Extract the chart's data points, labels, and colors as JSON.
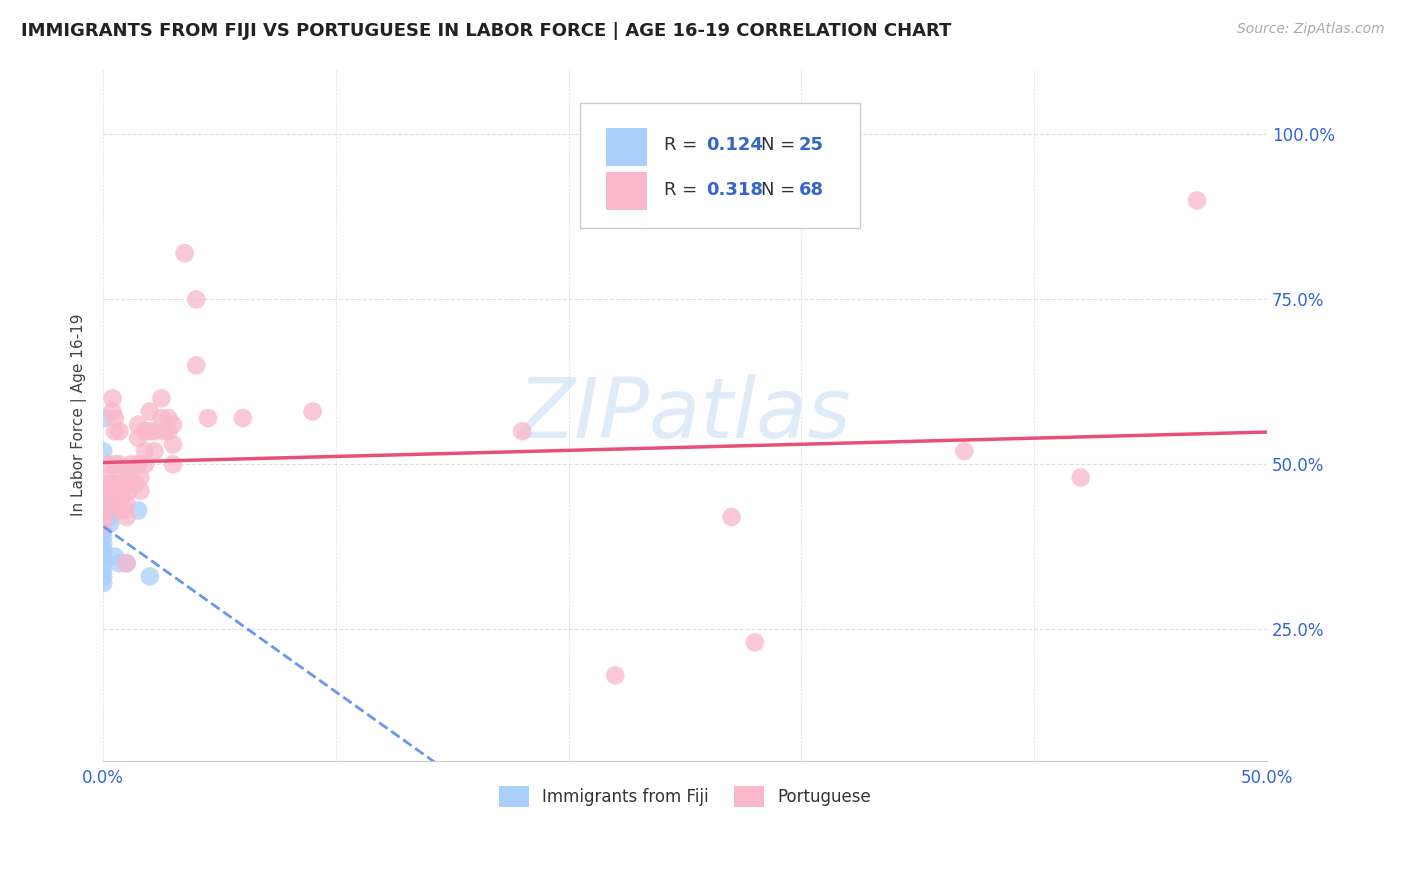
{
  "title": "IMMIGRANTS FROM FIJI VS PORTUGUESE IN LABOR FORCE | AGE 16-19 CORRELATION CHART",
  "source": "Source: ZipAtlas.com",
  "ylabel": "In Labor Force | Age 16-19",
  "xlim": [
    0.0,
    0.5
  ],
  "ylim": [
    0.05,
    1.1
  ],
  "fiji_R": 0.124,
  "fiji_N": 25,
  "port_R": 0.318,
  "port_N": 68,
  "fiji_color": "#aacffa",
  "fiji_line_color": "#6699ee",
  "port_color": "#f9b8cc",
  "port_line_color": "#e8507a",
  "fiji_scatter": [
    [
      0.0,
      0.57
    ],
    [
      0.0,
      0.52
    ],
    [
      0.0,
      0.44
    ],
    [
      0.0,
      0.43
    ],
    [
      0.0,
      0.42
    ],
    [
      0.0,
      0.42
    ],
    [
      0.0,
      0.41
    ],
    [
      0.0,
      0.4
    ],
    [
      0.0,
      0.39
    ],
    [
      0.0,
      0.38
    ],
    [
      0.0,
      0.37
    ],
    [
      0.0,
      0.36
    ],
    [
      0.0,
      0.35
    ],
    [
      0.0,
      0.34
    ],
    [
      0.0,
      0.33
    ],
    [
      0.0,
      0.32
    ],
    [
      0.003,
      0.44
    ],
    [
      0.003,
      0.43
    ],
    [
      0.003,
      0.42
    ],
    [
      0.003,
      0.41
    ],
    [
      0.005,
      0.36
    ],
    [
      0.007,
      0.35
    ],
    [
      0.01,
      0.35
    ],
    [
      0.015,
      0.43
    ],
    [
      0.02,
      0.33
    ]
  ],
  "port_scatter": [
    [
      0.0,
      0.44
    ],
    [
      0.0,
      0.43
    ],
    [
      0.0,
      0.42
    ],
    [
      0.0,
      0.41
    ],
    [
      0.002,
      0.5
    ],
    [
      0.002,
      0.48
    ],
    [
      0.002,
      0.47
    ],
    [
      0.002,
      0.46
    ],
    [
      0.003,
      0.47
    ],
    [
      0.003,
      0.46
    ],
    [
      0.003,
      0.45
    ],
    [
      0.003,
      0.44
    ],
    [
      0.004,
      0.6
    ],
    [
      0.004,
      0.58
    ],
    [
      0.005,
      0.57
    ],
    [
      0.005,
      0.55
    ],
    [
      0.005,
      0.5
    ],
    [
      0.006,
      0.47
    ],
    [
      0.006,
      0.46
    ],
    [
      0.006,
      0.44
    ],
    [
      0.006,
      0.43
    ],
    [
      0.007,
      0.55
    ],
    [
      0.007,
      0.5
    ],
    [
      0.007,
      0.48
    ],
    [
      0.008,
      0.46
    ],
    [
      0.008,
      0.45
    ],
    [
      0.009,
      0.43
    ],
    [
      0.01,
      0.44
    ],
    [
      0.01,
      0.42
    ],
    [
      0.01,
      0.35
    ],
    [
      0.011,
      0.48
    ],
    [
      0.011,
      0.46
    ],
    [
      0.012,
      0.5
    ],
    [
      0.012,
      0.49
    ],
    [
      0.014,
      0.47
    ],
    [
      0.015,
      0.56
    ],
    [
      0.015,
      0.54
    ],
    [
      0.015,
      0.5
    ],
    [
      0.016,
      0.48
    ],
    [
      0.016,
      0.46
    ],
    [
      0.018,
      0.55
    ],
    [
      0.018,
      0.52
    ],
    [
      0.018,
      0.5
    ],
    [
      0.02,
      0.58
    ],
    [
      0.02,
      0.55
    ],
    [
      0.022,
      0.55
    ],
    [
      0.022,
      0.52
    ],
    [
      0.025,
      0.6
    ],
    [
      0.025,
      0.57
    ],
    [
      0.026,
      0.55
    ],
    [
      0.028,
      0.57
    ],
    [
      0.028,
      0.55
    ],
    [
      0.03,
      0.56
    ],
    [
      0.03,
      0.53
    ],
    [
      0.03,
      0.5
    ],
    [
      0.035,
      0.82
    ],
    [
      0.04,
      0.75
    ],
    [
      0.04,
      0.65
    ],
    [
      0.045,
      0.57
    ],
    [
      0.06,
      0.57
    ],
    [
      0.09,
      0.58
    ],
    [
      0.18,
      0.55
    ],
    [
      0.22,
      0.18
    ],
    [
      0.27,
      0.42
    ],
    [
      0.28,
      0.23
    ],
    [
      0.37,
      0.52
    ],
    [
      0.42,
      0.48
    ],
    [
      0.47,
      0.9
    ]
  ],
  "watermark": "ZIPatlas",
  "background_color": "#ffffff",
  "grid_color": "#e0e0e0",
  "tick_color": "#3366cc",
  "title_color": "#222222",
  "source_color": "#aaaaaa"
}
